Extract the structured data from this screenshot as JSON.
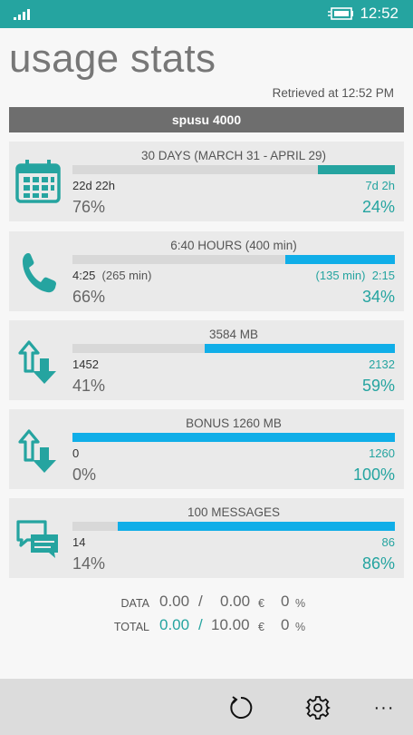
{
  "status_bar": {
    "time": "12:52",
    "signal_icon": "signal-icon",
    "battery_icon": "battery-charging-icon"
  },
  "app": {
    "title": "usage stats",
    "retrieved": "Retrieved at 12:52 PM",
    "plan_name": "spusu 4000"
  },
  "colors": {
    "teal": "#25a4a0",
    "blue": "#10aee8",
    "statusbar": "#25a4a0"
  },
  "cards": [
    {
      "icon": "calendar-icon",
      "title": "30 DAYS (MARCH 31 - APRIL 29)",
      "used": "22d 22h",
      "remaining": "7d 2h",
      "used_pct": "76%",
      "remaining_pct": "24%",
      "remaining_fraction": 0.24,
      "fill_color": "#25a4a0",
      "text_color": "#25a4a0"
    },
    {
      "icon": "phone-icon",
      "title": "6:40 HOURS (400 min)",
      "used": "4:25",
      "used_paren": "(265 min)",
      "remaining_paren": "(135 min)",
      "remaining": "2:15",
      "used_pct": "66%",
      "remaining_pct": "34%",
      "remaining_fraction": 0.34,
      "fill_color": "#10aee8",
      "text_color": "#25a4a0"
    },
    {
      "icon": "data-transfer-icon",
      "title": "3584 MB",
      "used": "1452",
      "remaining": "2132",
      "used_pct": "41%",
      "remaining_pct": "59%",
      "remaining_fraction": 0.59,
      "fill_color": "#10aee8",
      "text_color": "#25a4a0"
    },
    {
      "icon": "data-transfer-icon",
      "title": "BONUS 1260 MB",
      "used": "0",
      "remaining": "1260",
      "used_pct": "0%",
      "remaining_pct": "100%",
      "remaining_fraction": 1.0,
      "fill_color": "#10aee8",
      "text_color": "#25a4a0"
    },
    {
      "icon": "messages-icon",
      "title": "100 MESSAGES",
      "used": "14",
      "remaining": "86",
      "used_pct": "14%",
      "remaining_pct": "86%",
      "remaining_fraction": 0.86,
      "fill_color": "#10aee8",
      "text_color": "#25a4a0"
    }
  ],
  "summary": {
    "data": {
      "label": "DATA",
      "a": "0.00",
      "sep": "/",
      "b": "0.00",
      "currency": "€",
      "pct": "0",
      "pct_sign": "%"
    },
    "total": {
      "label": "TOTAL",
      "a": "0.00",
      "sep": "/",
      "b": "10.00",
      "currency": "€",
      "pct": "0",
      "pct_sign": "%"
    }
  },
  "appbar": {
    "refresh_icon": "refresh-icon",
    "settings_icon": "gear-icon",
    "more_label": "···"
  }
}
